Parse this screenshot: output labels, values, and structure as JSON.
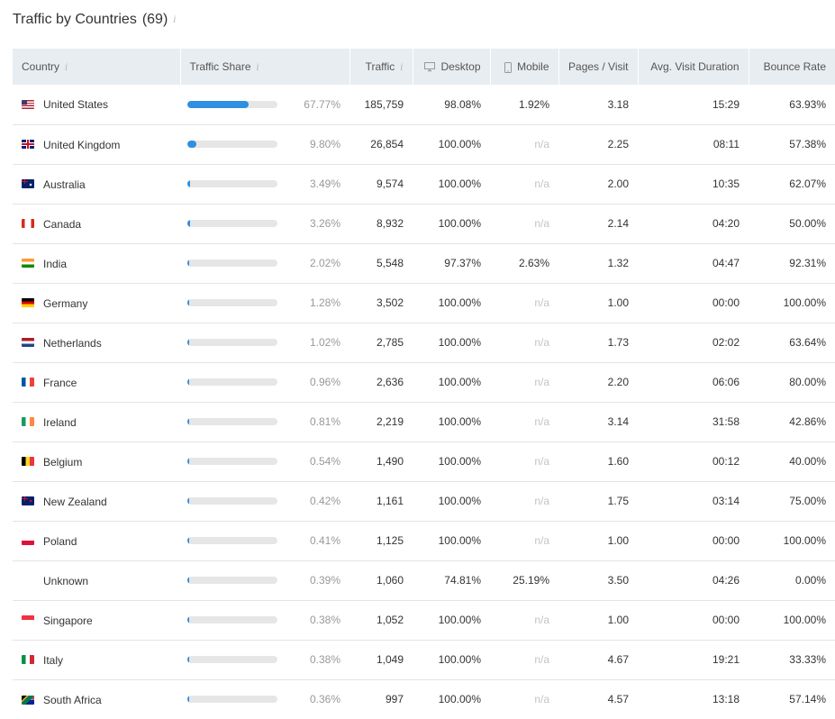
{
  "title": "Traffic by Countries",
  "count": "(69)",
  "info_glyph": "i",
  "colors": {
    "bar_fill": "#2f8fe0",
    "bar_track": "#e6e6e6",
    "header_bg": "#e8edf1"
  },
  "columns": {
    "country": "Country",
    "traffic_share": "Traffic Share",
    "traffic": "Traffic",
    "desktop": "Desktop",
    "mobile": "Mobile",
    "pages_visit": "Pages / Visit",
    "avg_duration": "Avg. Visit Duration",
    "bounce_rate": "Bounce Rate"
  },
  "rows": [
    {
      "flag": "us",
      "country": "United States",
      "share": "67.77%",
      "share_value": 67.77,
      "traffic": "185,759",
      "desktop": "98.08%",
      "mobile": "1.92%",
      "pages": "3.18",
      "duration": "15:29",
      "bounce": "63.93%"
    },
    {
      "flag": "gb",
      "country": "United Kingdom",
      "share": "9.80%",
      "share_value": 9.8,
      "traffic": "26,854",
      "desktop": "100.00%",
      "mobile": "n/a",
      "pages": "2.25",
      "duration": "08:11",
      "bounce": "57.38%"
    },
    {
      "flag": "au",
      "country": "Australia",
      "share": "3.49%",
      "share_value": 3.49,
      "traffic": "9,574",
      "desktop": "100.00%",
      "mobile": "n/a",
      "pages": "2.00",
      "duration": "10:35",
      "bounce": "62.07%"
    },
    {
      "flag": "ca",
      "country": "Canada",
      "share": "3.26%",
      "share_value": 3.26,
      "traffic": "8,932",
      "desktop": "100.00%",
      "mobile": "n/a",
      "pages": "2.14",
      "duration": "04:20",
      "bounce": "50.00%"
    },
    {
      "flag": "in",
      "country": "India",
      "share": "2.02%",
      "share_value": 2.02,
      "traffic": "5,548",
      "desktop": "97.37%",
      "mobile": "2.63%",
      "pages": "1.32",
      "duration": "04:47",
      "bounce": "92.31%"
    },
    {
      "flag": "de",
      "country": "Germany",
      "share": "1.28%",
      "share_value": 1.28,
      "traffic": "3,502",
      "desktop": "100.00%",
      "mobile": "n/a",
      "pages": "1.00",
      "duration": "00:00",
      "bounce": "100.00%"
    },
    {
      "flag": "nl",
      "country": "Netherlands",
      "share": "1.02%",
      "share_value": 1.02,
      "traffic": "2,785",
      "desktop": "100.00%",
      "mobile": "n/a",
      "pages": "1.73",
      "duration": "02:02",
      "bounce": "63.64%"
    },
    {
      "flag": "fr",
      "country": "France",
      "share": "0.96%",
      "share_value": 0.96,
      "traffic": "2,636",
      "desktop": "100.00%",
      "mobile": "n/a",
      "pages": "2.20",
      "duration": "06:06",
      "bounce": "80.00%"
    },
    {
      "flag": "ie",
      "country": "Ireland",
      "share": "0.81%",
      "share_value": 0.81,
      "traffic": "2,219",
      "desktop": "100.00%",
      "mobile": "n/a",
      "pages": "3.14",
      "duration": "31:58",
      "bounce": "42.86%"
    },
    {
      "flag": "be",
      "country": "Belgium",
      "share": "0.54%",
      "share_value": 0.54,
      "traffic": "1,490",
      "desktop": "100.00%",
      "mobile": "n/a",
      "pages": "1.60",
      "duration": "00:12",
      "bounce": "40.00%"
    },
    {
      "flag": "nz",
      "country": "New Zealand",
      "share": "0.42%",
      "share_value": 0.42,
      "traffic": "1,161",
      "desktop": "100.00%",
      "mobile": "n/a",
      "pages": "1.75",
      "duration": "03:14",
      "bounce": "75.00%"
    },
    {
      "flag": "pl",
      "country": "Poland",
      "share": "0.41%",
      "share_value": 0.41,
      "traffic": "1,125",
      "desktop": "100.00%",
      "mobile": "n/a",
      "pages": "1.00",
      "duration": "00:00",
      "bounce": "100.00%"
    },
    {
      "flag": "",
      "country": "Unknown",
      "share": "0.39%",
      "share_value": 0.39,
      "traffic": "1,060",
      "desktop": "74.81%",
      "mobile": "25.19%",
      "pages": "3.50",
      "duration": "04:26",
      "bounce": "0.00%"
    },
    {
      "flag": "sg",
      "country": "Singapore",
      "share": "0.38%",
      "share_value": 0.38,
      "traffic": "1,052",
      "desktop": "100.00%",
      "mobile": "n/a",
      "pages": "1.00",
      "duration": "00:00",
      "bounce": "100.00%"
    },
    {
      "flag": "it",
      "country": "Italy",
      "share": "0.38%",
      "share_value": 0.38,
      "traffic": "1,049",
      "desktop": "100.00%",
      "mobile": "n/a",
      "pages": "4.67",
      "duration": "19:21",
      "bounce": "33.33%"
    },
    {
      "flag": "za",
      "country": "South Africa",
      "share": "0.36%",
      "share_value": 0.36,
      "traffic": "997",
      "desktop": "100.00%",
      "mobile": "n/a",
      "pages": "4.57",
      "duration": "13:18",
      "bounce": "57.14%"
    }
  ]
}
